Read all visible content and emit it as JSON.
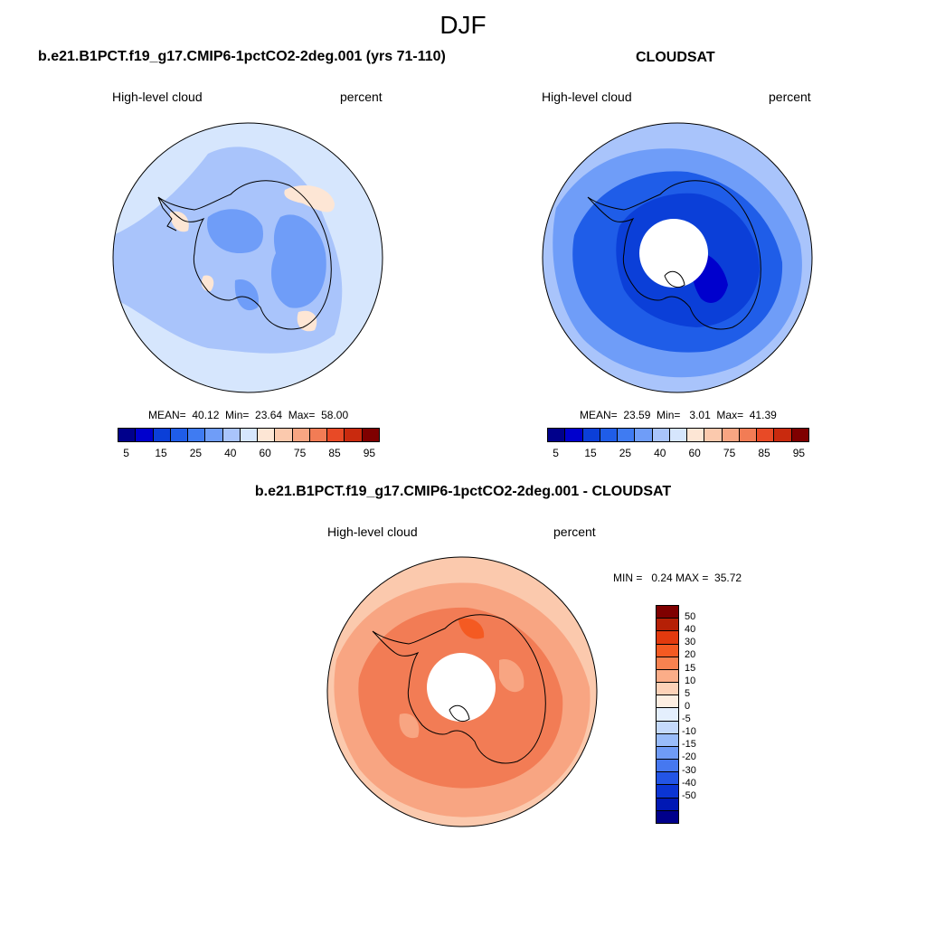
{
  "main_title": "DJF",
  "panels": [
    {
      "title": "b.e21.B1PCT.f19_g17.CMIP6-1pctCO2-2deg.001 (yrs 71-110)",
      "field_label": "High-level cloud",
      "units_label": "percent",
      "stats": "MEAN=  40.12  Min=  23.64  Max=  58.00"
    },
    {
      "title": "CLOUDSAT",
      "field_label": "High-level cloud",
      "units_label": "percent",
      "stats": "MEAN=  23.59  Min=   3.01  Max=  41.39"
    },
    {
      "title": "b.e21.B1PCT.f19_g17.CMIP6-1pctCO2-2deg.001 - CLOUDSAT",
      "field_label": "High-level cloud",
      "units_label": "percent",
      "stats": "MIN =   0.24 MAX =  35.72"
    }
  ],
  "abs_colorbar": {
    "colors": [
      "#00008b",
      "#0000cd",
      "#0b3fd8",
      "#1f5de8",
      "#3f7bf2",
      "#6f9df8",
      "#a9c4fb",
      "#d6e6fd",
      "#fde6d5",
      "#fbc9ad",
      "#f8a582",
      "#f27c55",
      "#e84a26",
      "#c92a0e",
      "#7f0000"
    ],
    "tick_labels": [
      "5",
      "15",
      "25",
      "40",
      "60",
      "75",
      "85",
      "95"
    ]
  },
  "diff_colorbar": {
    "colors": [
      "#7f0000",
      "#b52006",
      "#e23a0e",
      "#f45a22",
      "#f88250",
      "#fbad88",
      "#fdd2b8",
      "#fdeee2",
      "#e4effd",
      "#c5dafc",
      "#99bcfa",
      "#6f9bf6",
      "#4678f0",
      "#2355e6",
      "#0b35d4",
      "#0018b4",
      "#00008b"
    ],
    "tick_labels": [
      "50",
      "40",
      "30",
      "20",
      "15",
      "10",
      "5",
      "0",
      "-5",
      "-10",
      "-15",
      "-20",
      "-30",
      "-40",
      "-50"
    ]
  },
  "map_colors": {
    "panel1_base": "#d6e6fd",
    "panel1_light_blue": "#a9c4fb",
    "panel1_mid_blue": "#6f9df8",
    "panel1_peach": "#fde6d5",
    "panel2_base": "#a9c4fb",
    "panel2_mid": "#6f9df8",
    "panel2_deep": "#1f5de8",
    "panel2_dark": "#0b3fd8",
    "panel3_base": "#fbc9ad",
    "panel3_mid": "#f8a582",
    "panel3_dark": "#f27c55",
    "coastline": "#000000"
  }
}
